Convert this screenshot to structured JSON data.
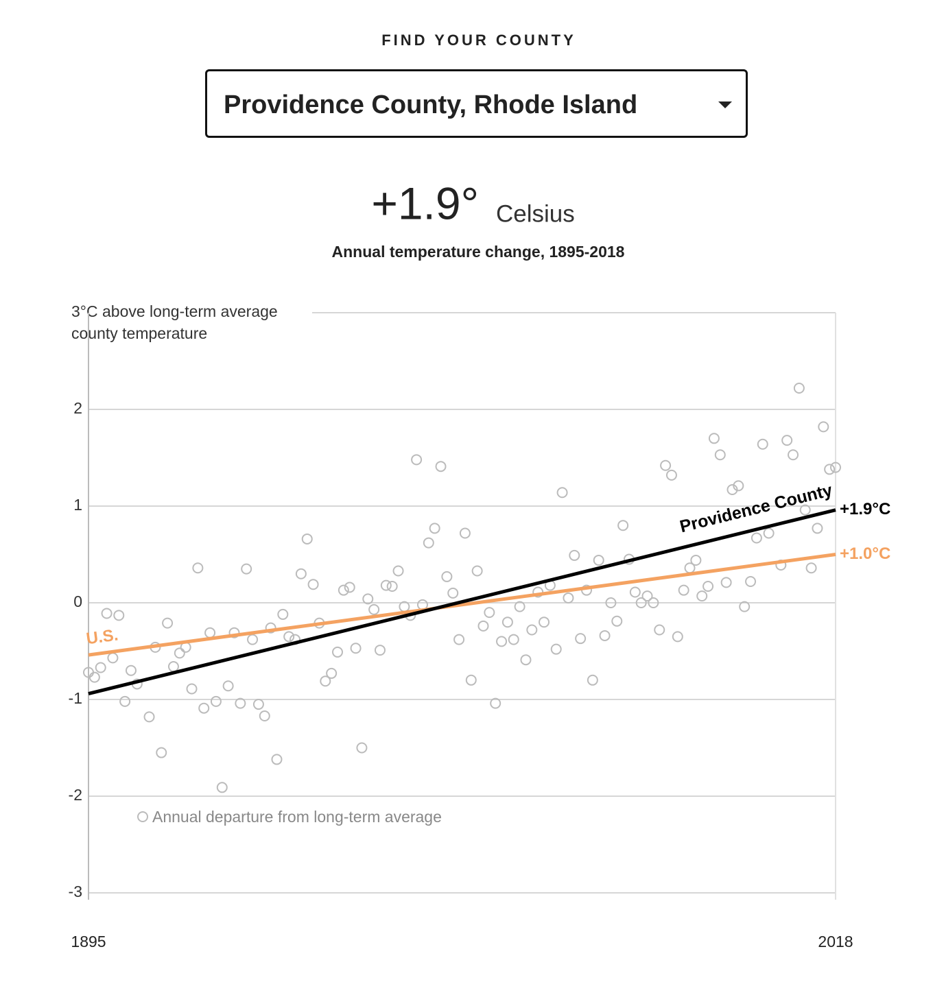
{
  "header": {
    "label": "FIND YOUR COUNTY",
    "selector": "Providence County, Rhode Island"
  },
  "chart_data": {
    "type": "scatter",
    "headline": "+1.9°",
    "headline_unit": "Celsius",
    "title": "Annual temperature change, 1895-2018",
    "series": [
      {
        "name": "Annual departure from long-term average",
        "color": "#bbbbbb",
        "x": [
          1895,
          1896,
          1897,
          1898,
          1899,
          1900,
          1901,
          1902,
          1903,
          1905,
          1906,
          1907,
          1908,
          1909,
          1910,
          1911,
          1912,
          1913,
          1914,
          1915,
          1916,
          1917,
          1918,
          1919,
          1920,
          1921,
          1922,
          1923,
          1924,
          1925,
          1926,
          1927,
          1928,
          1929,
          1930,
          1931,
          1932,
          1933,
          1934,
          1935,
          1936,
          1937,
          1938,
          1939,
          1940,
          1941,
          1942,
          1943,
          1944,
          1945,
          1946,
          1947,
          1948,
          1949,
          1950,
          1951,
          1952,
          1953,
          1954,
          1955,
          1956,
          1957,
          1958,
          1959,
          1960,
          1961,
          1962,
          1963,
          1964,
          1965,
          1966,
          1967,
          1968,
          1969,
          1970,
          1971,
          1972,
          1973,
          1974,
          1975,
          1976,
          1977,
          1978,
          1979,
          1980,
          1981,
          1982,
          1983,
          1984,
          1985,
          1986,
          1987,
          1988,
          1989,
          1990,
          1991,
          1992,
          1993,
          1994,
          1995,
          1996,
          1997,
          1998,
          1999,
          2000,
          2001,
          2002,
          2003,
          2004,
          2005,
          2006,
          2007,
          2009,
          2010,
          2011,
          2012,
          2013,
          2014,
          2015,
          2016,
          2017,
          2018
        ],
        "values": [
          -0.72,
          -0.77,
          -0.67,
          -0.11,
          -0.57,
          -0.13,
          -1.02,
          -0.7,
          -0.84,
          -1.18,
          -0.46,
          -1.55,
          -0.21,
          -0.66,
          -0.52,
          -0.46,
          -0.89,
          0.36,
          -1.09,
          -0.31,
          -1.02,
          -1.91,
          -0.86,
          -0.31,
          -1.04,
          0.35,
          -0.38,
          -1.05,
          -1.17,
          -0.26,
          -1.62,
          -0.12,
          -0.35,
          -0.38,
          0.3,
          0.66,
          0.19,
          -0.21,
          -0.81,
          -0.73,
          -0.51,
          0.13,
          0.16,
          -0.47,
          -1.5,
          0.04,
          -0.07,
          -0.49,
          0.18,
          0.17,
          0.33,
          -0.04,
          -0.13,
          1.48,
          -0.02,
          0.62,
          0.77,
          1.41,
          0.27,
          0.1,
          -0.38,
          0.72,
          -0.8,
          0.33,
          -0.24,
          -0.1,
          -1.04,
          -0.4,
          -0.2,
          -0.38,
          -0.04,
          -0.59,
          -0.28,
          0.11,
          -0.2,
          0.18,
          -0.48,
          1.14,
          0.05,
          0.49,
          -0.37,
          0.13,
          -0.8,
          0.44,
          -0.34,
          0.0,
          -0.19,
          0.8,
          0.45,
          0.11,
          0.0,
          0.07,
          0.0,
          -0.28,
          1.42,
          1.32,
          -0.35,
          0.13,
          0.36,
          0.44,
          0.07,
          0.17,
          1.7,
          1.53,
          0.21,
          1.17,
          1.21,
          -0.04,
          0.22,
          0.67,
          1.64,
          0.72,
          0.39,
          1.68,
          1.53,
          2.22,
          0.96,
          0.36,
          0.77,
          1.82,
          1.38,
          1.4
        ]
      },
      {
        "name": "Providence County",
        "type": "line",
        "color": "#000000",
        "x": [
          1895,
          2018
        ],
        "values": [
          -0.94,
          0.96
        ],
        "end_label": "+1.9°C"
      },
      {
        "name": "U.S.",
        "type": "line",
        "color": "#f4a261",
        "x": [
          1895,
          2018
        ],
        "values": [
          -0.54,
          0.5
        ],
        "end_label": "+1.0°C"
      }
    ],
    "xlim": [
      1895,
      2018
    ],
    "ylim": [
      -3,
      3
    ],
    "xticks": [
      1895,
      2018
    ],
    "yticks": [
      -3,
      -2,
      -1,
      0,
      1,
      2,
      {
        "value": 3,
        "label": [
          "3°C above long-term average",
          "county temperature"
        ]
      }
    ],
    "grid": true
  }
}
